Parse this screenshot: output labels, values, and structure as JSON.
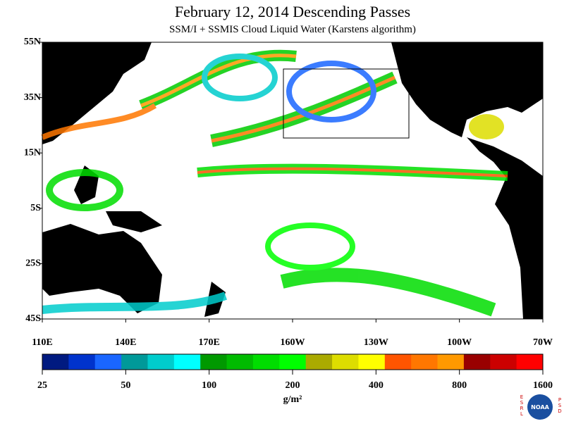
{
  "header": {
    "title": "February 12, 2014  Descending Passes",
    "subtitle": "SSM/I + SSMIS Cloud Liquid Water (Karstens algorithm)"
  },
  "map": {
    "lat_labels": [
      "55N",
      "35N",
      "15N",
      "5S",
      "25S",
      "45S"
    ],
    "lon_labels": [
      "110E",
      "140E",
      "170E",
      "160W",
      "130W",
      "100W",
      "70W"
    ]
  },
  "colorbar": {
    "ticks": [
      25,
      50,
      100,
      200,
      400,
      800,
      1600
    ],
    "unit": "g/m²",
    "log_base": 2,
    "colors": [
      "#001a80",
      "#0033cc",
      "#1a66ff",
      "#009999",
      "#00cccc",
      "#00ffff",
      "#009900",
      "#00bb00",
      "#00dd00",
      "#00ff00",
      "#aaaa00",
      "#dddd00",
      "#ffff00",
      "#ff5500",
      "#ff7700",
      "#ff9900",
      "#990000",
      "#cc0000",
      "#ff0000"
    ]
  },
  "logo": {
    "left": "ESRL",
    "center": "NOAA",
    "right": "PSD"
  }
}
